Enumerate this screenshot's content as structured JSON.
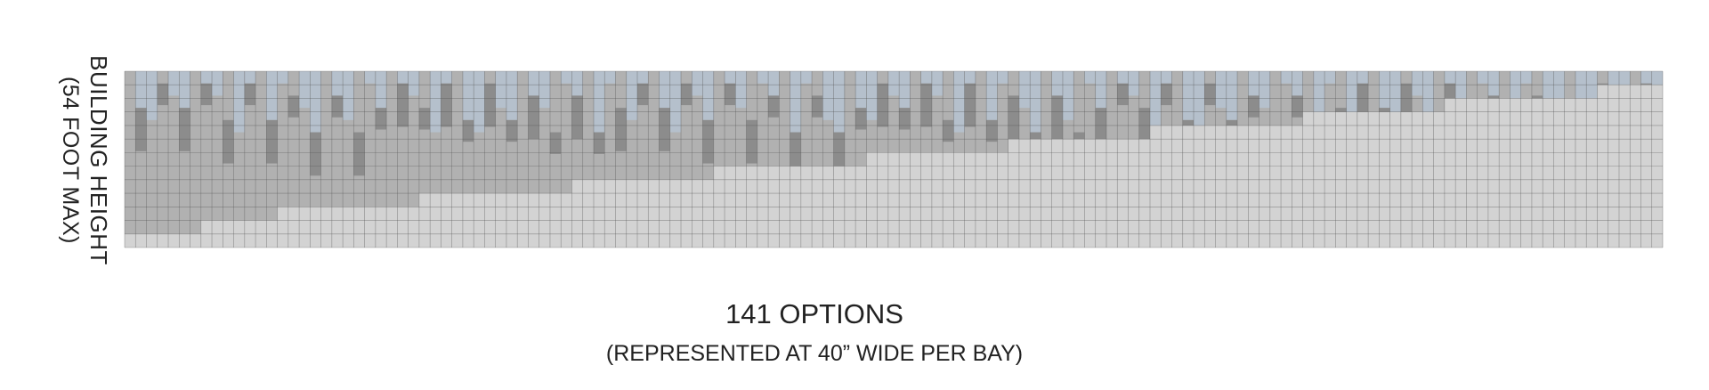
{
  "y_label": {
    "line1": "BUILDING HEIGHT",
    "line2": "(54 FOOT MAX)"
  },
  "caption": {
    "title": "141 OPTIONS",
    "subtitle": "(REPRESENTED AT 40” WIDE PER BAY)"
  },
  "colors": {
    "base_block": "#d3d3d3",
    "mid_block": "#b1b1b1",
    "dark_block": "#8c8c8c",
    "sky_block": "#b5c0cc",
    "grid_line": "#505050"
  },
  "diagram": {
    "option_count": 141,
    "grid_rows": 13
  }
}
